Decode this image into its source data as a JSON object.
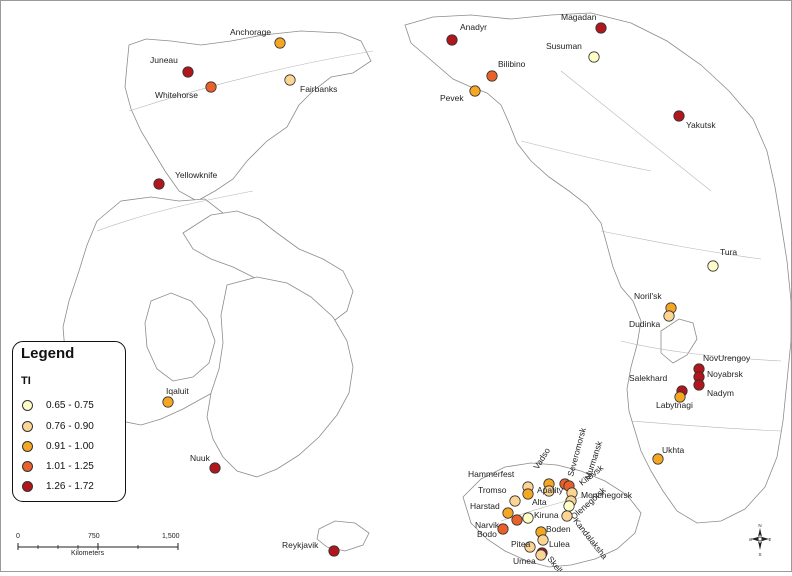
{
  "legend": {
    "title": "Legend",
    "field": "TI",
    "classes": [
      {
        "label": "0.65 - 0.75",
        "color": "#ffffc7"
      },
      {
        "label": "0.76 - 0.90",
        "color": "#fcd594"
      },
      {
        "label": "0.91 - 1.00",
        "color": "#f5a623"
      },
      {
        "label": "1.01 - 1.25",
        "color": "#e8602a"
      },
      {
        "label": "1.26 - 1.72",
        "color": "#b0161c"
      }
    ]
  },
  "scale": {
    "ticks": [
      "0",
      "750",
      "1,500"
    ],
    "unit": "Kilometers"
  },
  "compass": {
    "north": "N",
    "south": "S",
    "east": "E",
    "west": "W"
  },
  "cities": [
    {
      "name": "Juneau",
      "cls": 4
    },
    {
      "name": "Anchorage",
      "cls": 2
    },
    {
      "name": "Whitehorse",
      "cls": 3
    },
    {
      "name": "Fairbanks",
      "cls": 1
    },
    {
      "name": "Yellowknife",
      "cls": 4
    },
    {
      "name": "Iqaluit",
      "cls": 2
    },
    {
      "name": "Nuuk",
      "cls": 4
    },
    {
      "name": "Reykjavik",
      "cls": 4
    },
    {
      "name": "Anadyr",
      "cls": 4
    },
    {
      "name": "Magadan",
      "cls": 4
    },
    {
      "name": "Susuman",
      "cls": 0
    },
    {
      "name": "Bilibino",
      "cls": 3
    },
    {
      "name": "Pevek",
      "cls": 2
    },
    {
      "name": "Yakutsk",
      "cls": 4
    },
    {
      "name": "Tura",
      "cls": 0
    },
    {
      "name": "Noril'sk",
      "cls": 2
    },
    {
      "name": "Dudinka",
      "cls": 1
    },
    {
      "name": "NovUrengoy",
      "cls": 4
    },
    {
      "name": "Noyabrsk",
      "cls": 4
    },
    {
      "name": "Salekhard",
      "cls": 4
    },
    {
      "name": "Nadym",
      "cls": 4
    },
    {
      "name": "Labytnagi",
      "cls": 2
    },
    {
      "name": "Ukhta",
      "cls": 2
    },
    {
      "name": "Hammerfest",
      "cls": 1
    },
    {
      "name": "Vadso",
      "cls": 2
    },
    {
      "name": "Severomorsk",
      "cls": 3
    },
    {
      "name": "Murmansk",
      "cls": 3
    },
    {
      "name": "Kirovsk",
      "cls": 1
    },
    {
      "name": "Apatity",
      "cls": 1
    },
    {
      "name": "Monchegorsk",
      "cls": 1
    },
    {
      "name": "Olenegorsk",
      "cls": 0
    },
    {
      "name": "Tromso",
      "cls": 1
    },
    {
      "name": "Alta",
      "cls": 2
    },
    {
      "name": "Harstad",
      "cls": 2
    },
    {
      "name": "Kiruna",
      "cls": 0
    },
    {
      "name": "Kandalaksha",
      "cls": 1
    },
    {
      "name": "Narvik",
      "cls": 3
    },
    {
      "name": "Boden",
      "cls": 2
    },
    {
      "name": "Bodo",
      "cls": 3
    },
    {
      "name": "Lulea",
      "cls": 1
    },
    {
      "name": "Pitea",
      "cls": 1
    },
    {
      "name": "Skelleftea",
      "cls": 4
    },
    {
      "name": "Umea",
      "cls": 1
    }
  ]
}
